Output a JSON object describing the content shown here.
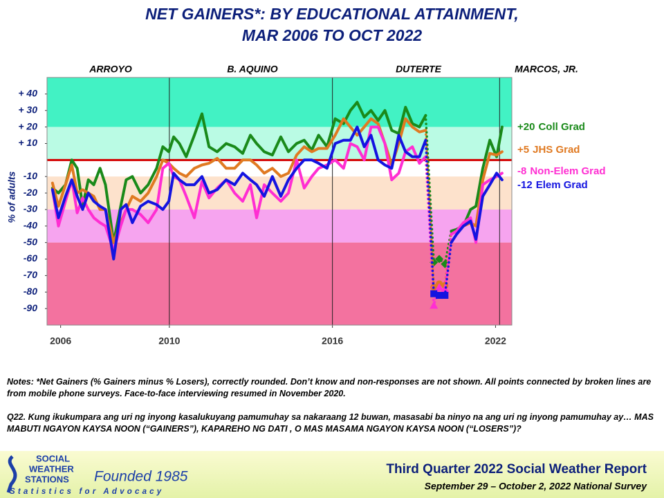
{
  "chart_data": {
    "type": "line",
    "title": [
      "NET GAINERS*: BY EDUCATIONAL ATTAINMENT,",
      "MAR 2006 TO OCT 2022"
    ],
    "administrations": [
      "ARROYO",
      "B. AQUINO",
      "DUTERTE",
      "MARCOS, JR."
    ],
    "y_label": "% of adults",
    "xlim": [
      2005.5,
      2022.6
    ],
    "xticks": [
      2006,
      2010,
      2016,
      2022
    ],
    "term_lines": [
      2010,
      2016,
      2022.15
    ],
    "ylim": [
      -100,
      50
    ],
    "yticks": [
      {
        "value": 40,
        "label": "+ 40"
      },
      {
        "value": 30,
        "label": "+ 30"
      },
      {
        "value": 20,
        "label": "+ 20"
      },
      {
        "value": 10,
        "label": "+ 10"
      },
      -10,
      -20,
      -30,
      -40,
      -50,
      -60,
      -70,
      -80,
      -90
    ],
    "zero_line_color": "#d40000",
    "bands": [
      {
        "from": 50,
        "to": 20,
        "color": "#42f2c4"
      },
      {
        "from": 20,
        "to": 0,
        "color": "#bafbe4"
      },
      {
        "from": 0,
        "to": -10,
        "color": "#ffffff"
      },
      {
        "from": -10,
        "to": -30,
        "color": "#fde2cc"
      },
      {
        "from": -30,
        "to": -50,
        "color": "#f6a4ef"
      },
      {
        "from": -50,
        "to": -100,
        "color": "#f3729f"
      }
    ],
    "mobile_x": [
      2019.73,
      2019.93,
      2020.14
    ],
    "x": [
      2005.7,
      2005.92,
      2006.18,
      2006.41,
      2006.61,
      2006.81,
      2007.02,
      2007.22,
      2007.45,
      2007.65,
      2007.95,
      2008.21,
      2008.41,
      2008.64,
      2008.94,
      2009.22,
      2009.53,
      2009.76,
      2009.98,
      2010.16,
      2010.37,
      2010.62,
      2010.92,
      2011.2,
      2011.46,
      2011.76,
      2012.09,
      2012.4,
      2012.7,
      2012.98,
      2013.21,
      2013.49,
      2013.79,
      2014.1,
      2014.38,
      2014.68,
      2014.96,
      2015.24,
      2015.49,
      2015.8,
      2016.1,
      2016.41,
      2016.66,
      2016.91,
      2017.17,
      2017.42,
      2017.68,
      2017.93,
      2018.18,
      2018.44,
      2018.69,
      2018.94,
      2019.2,
      2019.43,
      2019.73,
      2019.93,
      2020.14,
      2020.37,
      2020.57,
      2020.82,
      2021.08,
      2021.28,
      2021.53,
      2021.79,
      2022.04,
      2022.24
    ],
    "series": [
      {
        "name": "Coll Grad",
        "end_label": "+20",
        "color": "#1a8a1a",
        "marker": "diamond",
        "values": [
          -17,
          -20,
          -15,
          0,
          -5,
          -28,
          -12,
          -15,
          -5,
          -15,
          -50,
          -28,
          -12,
          -10,
          -20,
          -15,
          -5,
          8,
          5,
          14,
          10,
          2,
          15,
          28,
          8,
          5,
          10,
          8,
          4,
          15,
          10,
          5,
          3,
          14,
          5,
          10,
          12,
          6,
          15,
          8,
          25,
          22,
          30,
          35,
          26,
          30,
          24,
          30,
          18,
          16,
          32,
          22,
          20,
          27,
          -62,
          -60,
          -63,
          -43,
          -42,
          -40,
          -30,
          -28,
          -5,
          12,
          2,
          20
        ]
      },
      {
        "name": "JHS Grad",
        "end_label": "+5",
        "color": "#e07a22",
        "marker": "circle",
        "values": [
          -14,
          -28,
          -15,
          -3,
          -20,
          -18,
          -20,
          -22,
          -30,
          -30,
          -50,
          -38,
          -30,
          -22,
          -25,
          -20,
          -10,
          0,
          -2,
          -5,
          -8,
          -10,
          -5,
          -3,
          -2,
          1,
          -5,
          -5,
          0,
          0,
          -3,
          -8,
          -5,
          -10,
          -8,
          3,
          8,
          5,
          7,
          7,
          15,
          25,
          20,
          15,
          20,
          25,
          22,
          10,
          -3,
          10,
          25,
          20,
          17,
          18,
          -77,
          -75,
          -76,
          -45,
          -43,
          -40,
          -38,
          -40,
          -12,
          4,
          3,
          5
        ]
      },
      {
        "name": "Non-Elem Grad",
        "end_label": "-8",
        "color": "#ff2ed2",
        "marker": "triangle",
        "values": [
          -18,
          -40,
          -25,
          -12,
          -32,
          -23,
          -30,
          -35,
          -38,
          -40,
          -55,
          -40,
          -30,
          -30,
          -33,
          -38,
          -30,
          -5,
          -2,
          -10,
          -12,
          -22,
          -35,
          -13,
          -23,
          -17,
          -12,
          -20,
          -25,
          -15,
          -35,
          -15,
          -20,
          -25,
          -20,
          0,
          -17,
          -10,
          -5,
          -3,
          0,
          -5,
          10,
          8,
          0,
          20,
          20,
          10,
          -12,
          -8,
          5,
          8,
          -2,
          2,
          -88,
          -77,
          -78,
          -45,
          -43,
          -38,
          -35,
          -50,
          -15,
          -12,
          -10,
          -8
        ]
      },
      {
        "name": "Elem Grad",
        "end_label": "-12",
        "color": "#1414e0",
        "marker": "square",
        "values": [
          -18,
          -35,
          -22,
          -12,
          -22,
          -30,
          -20,
          -25,
          -28,
          -30,
          -60,
          -30,
          -27,
          -38,
          -28,
          -25,
          -27,
          -30,
          -25,
          -8,
          -12,
          -15,
          -15,
          -10,
          -20,
          -18,
          -12,
          -15,
          -8,
          -12,
          -15,
          -22,
          -10,
          -22,
          -12,
          -5,
          0,
          0,
          -2,
          -5,
          10,
          12,
          12,
          20,
          8,
          15,
          0,
          -3,
          -5,
          15,
          5,
          2,
          2,
          12,
          -81,
          -82,
          -82,
          -50,
          -45,
          -40,
          -37,
          -48,
          -22,
          -15,
          -8,
          -12
        ]
      }
    ]
  },
  "notes": "Notes: *Net Gainers (% Gainers minus % Losers), correctly rounded. Don’t know and non-responses are not shown. All points connected by broken lines are from mobile phone surveys. Face-to-face interviewing resumed in November 2020.",
  "question": "Q22. Kung ikukumpara ang uri ng inyong kasalukuyang pamumuhay sa nakaraang 12 buwan, masasabi ba ninyo na ang uri ng inyong pamumuhay ay… MAS MABUTI NGAYON KAYSA NOON (“GAINERS”), KAPAREHO NG DATI , O MAS MASAMA NGAYON KAYSA NOON (“LOSERS”)?",
  "footer": {
    "logo": [
      "SOCIAL",
      "WEATHER",
      "STATIONS"
    ],
    "founded": "Founded 1985",
    "tagline": "Statistics for Advocacy",
    "report": "Third Quarter 2022 Social Weather Report",
    "survey": "September 29 – October 2, 2022 National Survey"
  }
}
